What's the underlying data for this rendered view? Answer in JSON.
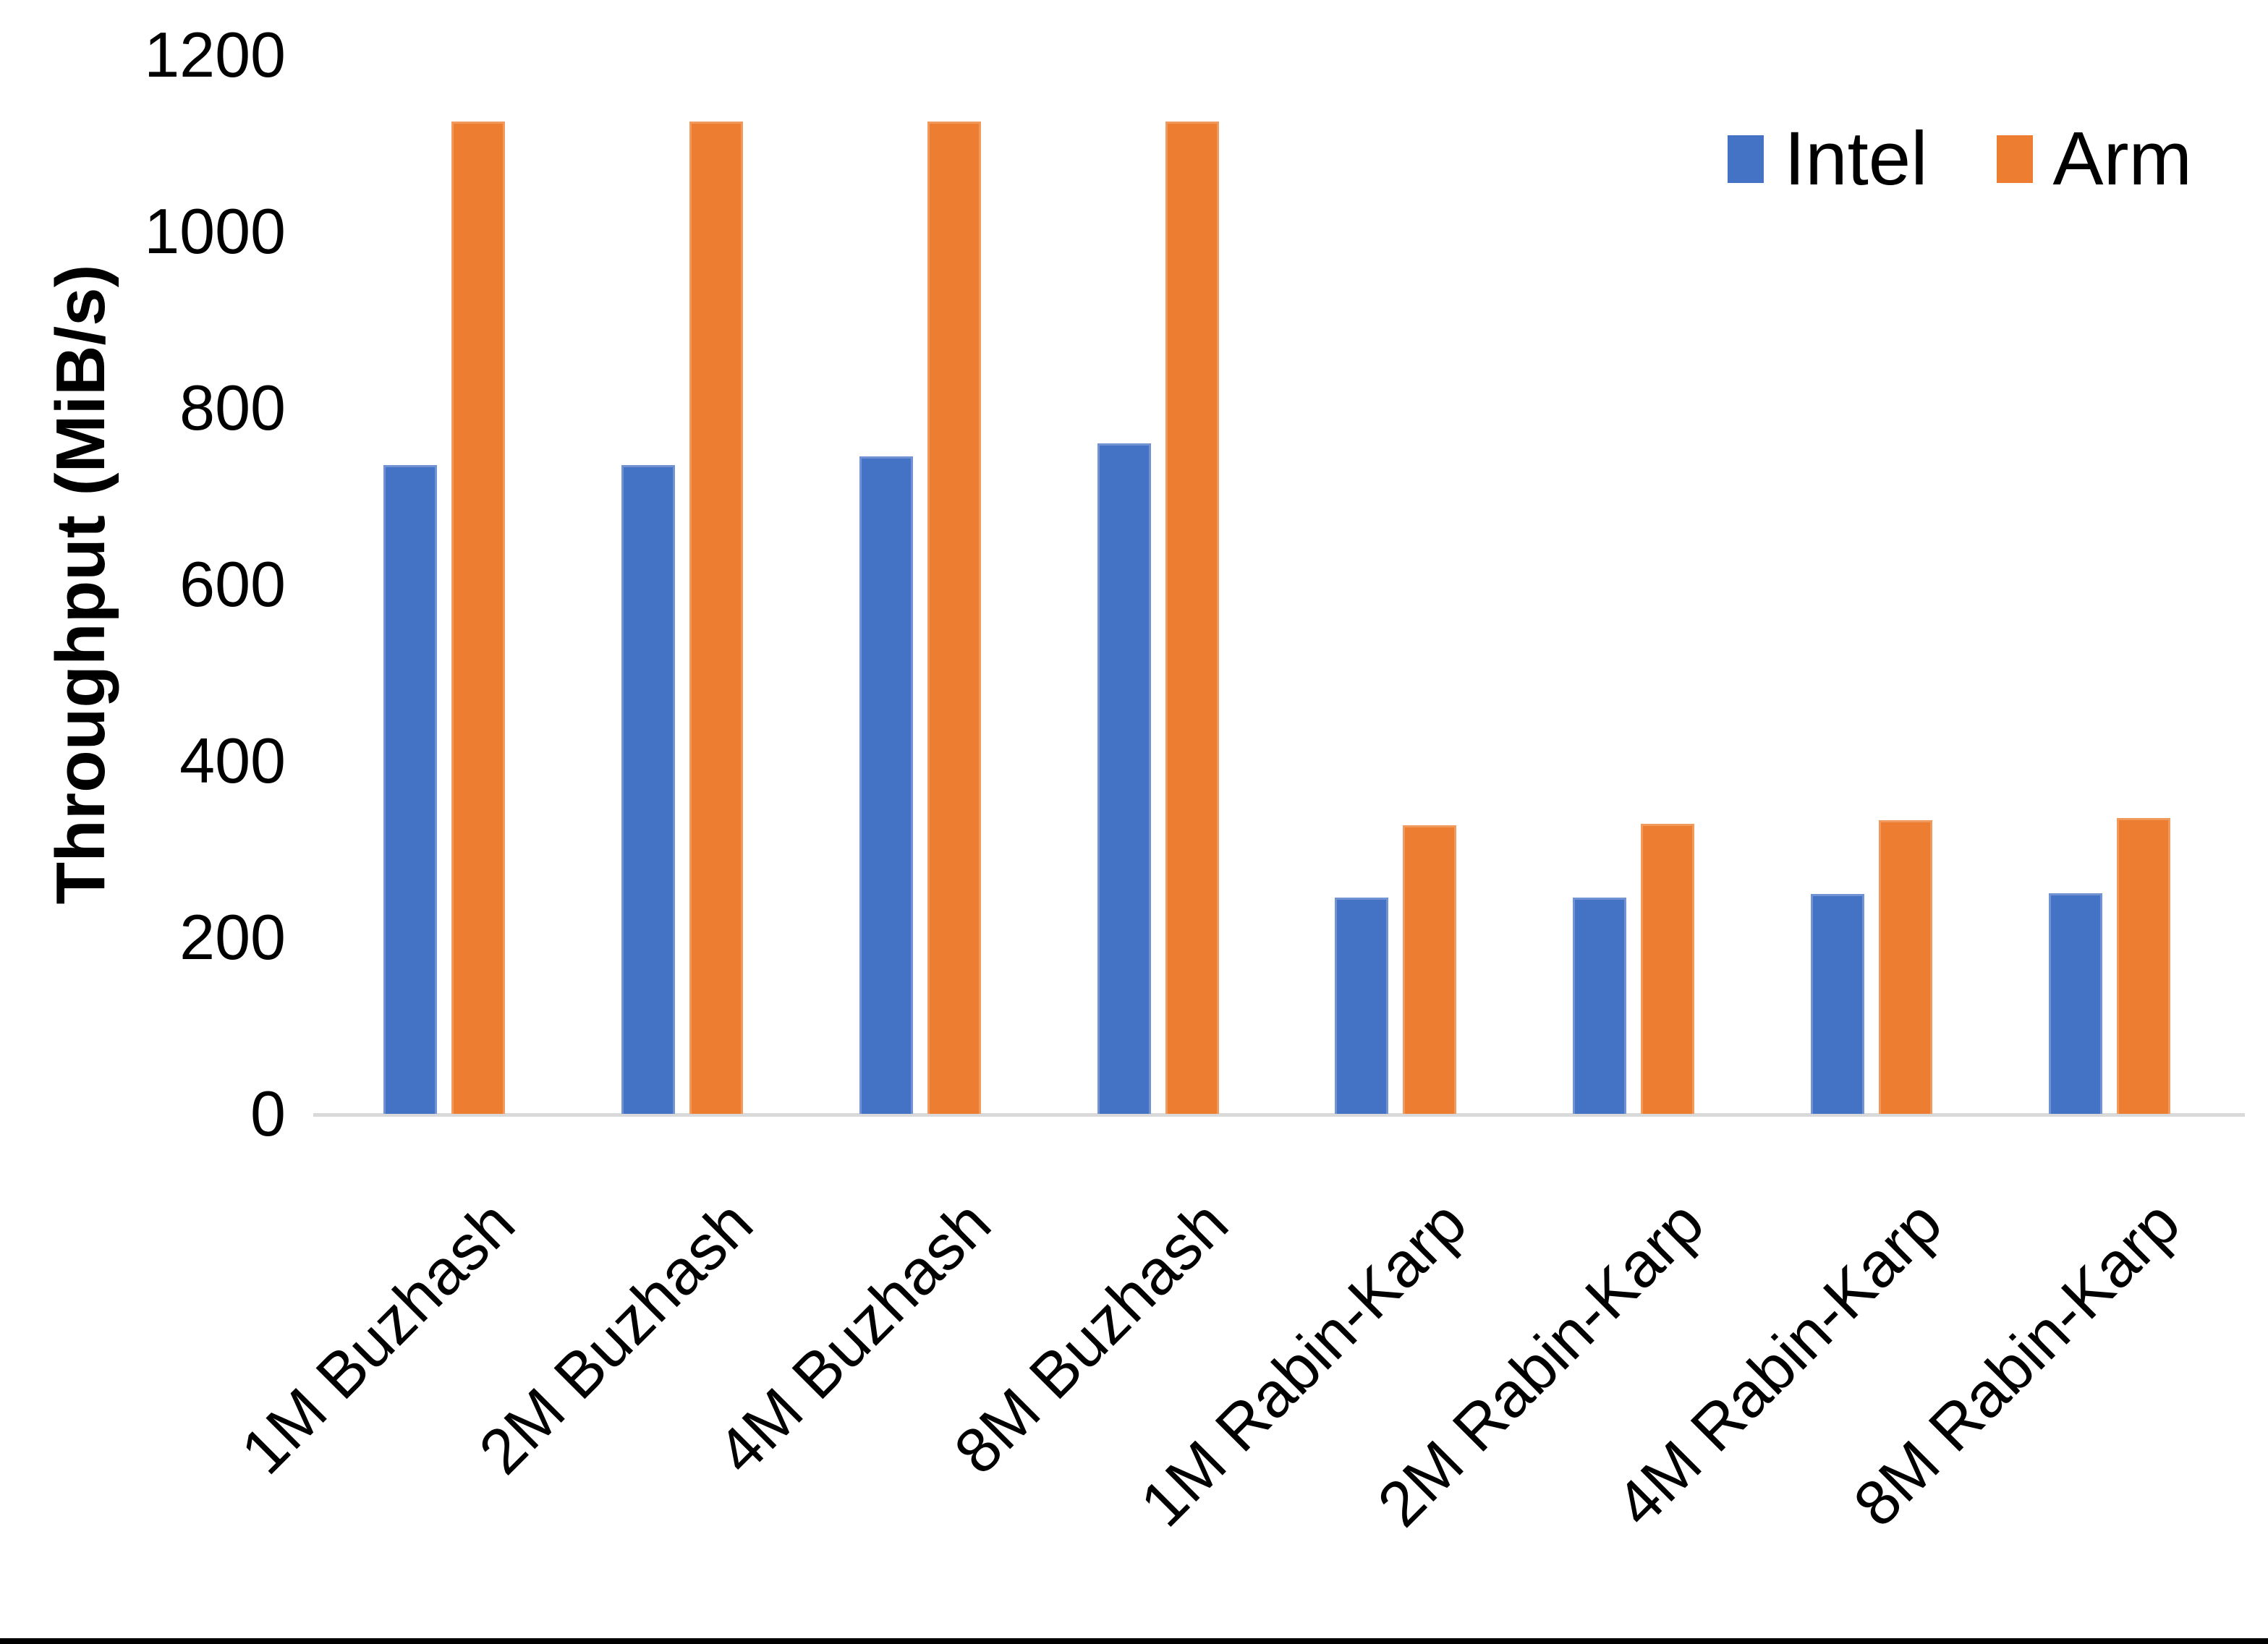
{
  "chart_data": {
    "type": "bar",
    "categories": [
      "1M Buzhash",
      "2M Buzhash",
      "4M Buzhash",
      "8M Buzhash",
      "1M Rabin-Karp",
      "2M Rabin-Karp",
      "4M Rabin-Karp",
      "8M Rabin-Karp"
    ],
    "series": [
      {
        "name": "Intel",
        "color": "#4472C4",
        "border_color": "#7193D3",
        "values": [
          735,
          735,
          745,
          760,
          245,
          245,
          249,
          250
        ]
      },
      {
        "name": "Arm",
        "color": "#ED7D31",
        "border_color": "#F09A5D",
        "values": [
          1125,
          1125,
          1125,
          1125,
          327,
          329,
          333,
          335
        ]
      }
    ],
    "xlabel": "",
    "ylabel": "Throughput (MiB/s)",
    "ylim": [
      0,
      1200
    ],
    "yticks": [
      "0",
      "200",
      "400",
      "600",
      "800",
      "1000",
      "1200"
    ],
    "grid": false,
    "legend_position": "top-right",
    "x_label_rotation_deg": 45
  },
  "style_colors": {
    "axis_line": "#D9D9D9",
    "text": "#000000",
    "background": "#FFFFFF",
    "bottom_edge_bar": "#000000"
  }
}
